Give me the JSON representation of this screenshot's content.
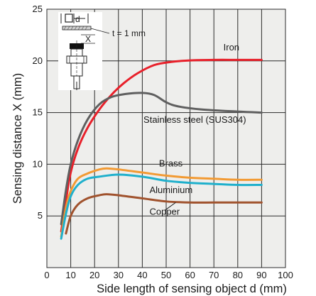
{
  "chart_data": {
    "type": "line",
    "title": "",
    "xlabel": "Side length of sensing object d (mm)",
    "ylabel": "Sensing distance X (mm)",
    "xlim": [
      0,
      100
    ],
    "ylim": [
      0,
      25
    ],
    "xticks": [
      0,
      10,
      20,
      30,
      40,
      50,
      60,
      70,
      80,
      90,
      100
    ],
    "yticks": [
      5,
      10,
      15,
      20,
      25
    ],
    "grid": true,
    "background_color": "#eeeeec",
    "series": [
      {
        "name": "Iron",
        "color": "#e8202a",
        "points": [
          [
            6,
            3.5
          ],
          [
            8,
            6.5
          ],
          [
            10,
            9.2
          ],
          [
            13,
            11.5
          ],
          [
            17,
            13.5
          ],
          [
            22,
            15.3
          ],
          [
            27,
            16.7
          ],
          [
            32,
            17.8
          ],
          [
            38,
            18.8
          ],
          [
            45,
            19.6
          ],
          [
            52,
            19.9
          ],
          [
            60,
            20.05
          ],
          [
            70,
            20.1
          ],
          [
            80,
            20.1
          ],
          [
            90,
            20.1
          ]
        ]
      },
      {
        "name": "Stainless steel (SUS304)",
        "color": "#5f5f5f",
        "points": [
          [
            6,
            4.2
          ],
          [
            8,
            7.5
          ],
          [
            10,
            10.0
          ],
          [
            13,
            12.3
          ],
          [
            17,
            14.3
          ],
          [
            22,
            15.8
          ],
          [
            27,
            16.5
          ],
          [
            33,
            16.8
          ],
          [
            40,
            16.9
          ],
          [
            45,
            16.7
          ],
          [
            50,
            16.0
          ],
          [
            55,
            15.6
          ],
          [
            65,
            15.3
          ],
          [
            80,
            15.1
          ],
          [
            90,
            15.0
          ]
        ]
      },
      {
        "name": "Brass",
        "color": "#f29a33",
        "points": [
          [
            6,
            3.0
          ],
          [
            8,
            5.8
          ],
          [
            10,
            7.4
          ],
          [
            13,
            8.6
          ],
          [
            17,
            9.1
          ],
          [
            22,
            9.5
          ],
          [
            25,
            9.6
          ],
          [
            30,
            9.5
          ],
          [
            40,
            9.2
          ],
          [
            50,
            8.9
          ],
          [
            60,
            8.7
          ],
          [
            70,
            8.6
          ],
          [
            80,
            8.5
          ],
          [
            90,
            8.5
          ]
        ]
      },
      {
        "name": "Aluminium",
        "color": "#1fb0cc",
        "points": [
          [
            6,
            2.8
          ],
          [
            8,
            5.2
          ],
          [
            10,
            6.9
          ],
          [
            13,
            8.0
          ],
          [
            17,
            8.6
          ],
          [
            22,
            8.8
          ],
          [
            30,
            9.0
          ],
          [
            40,
            8.8
          ],
          [
            50,
            8.4
          ],
          [
            60,
            8.2
          ],
          [
            70,
            8.1
          ],
          [
            80,
            8.0
          ],
          [
            90,
            8.0
          ]
        ]
      },
      {
        "name": "Copper",
        "color": "#a0522d",
        "points": [
          [
            8,
            3.3
          ],
          [
            10,
            5.0
          ],
          [
            13,
            6.1
          ],
          [
            17,
            6.7
          ],
          [
            22,
            7.0
          ],
          [
            25,
            7.1
          ],
          [
            30,
            7.0
          ],
          [
            40,
            6.7
          ],
          [
            50,
            6.4
          ],
          [
            60,
            6.3
          ],
          [
            70,
            6.3
          ],
          [
            80,
            6.3
          ],
          [
            90,
            6.3
          ]
        ]
      }
    ],
    "inset": {
      "labels": {
        "d": "d",
        "thickness": "t = 1 mm",
        "x": "X"
      }
    }
  }
}
